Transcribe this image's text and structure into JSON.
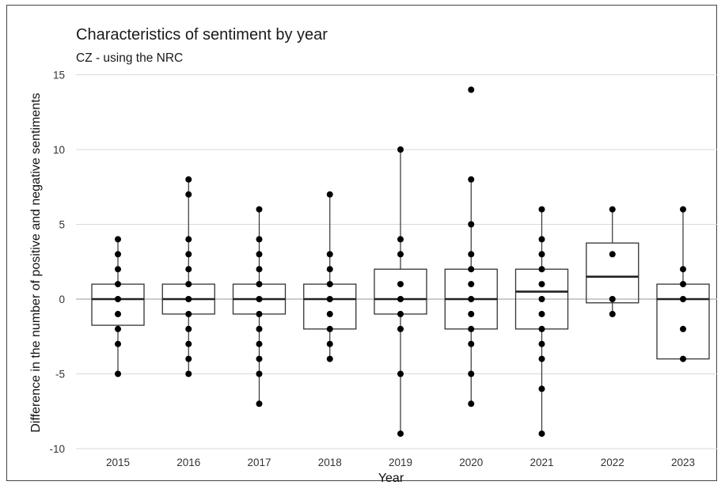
{
  "chart_data": {
    "type": "box",
    "title": "Characteristics of sentiment by year",
    "subtitle": "CZ - using the NRC",
    "xlabel": "Year",
    "ylabel": "Difference in the number of positive and negative sentiments",
    "categories": [
      "2015",
      "2016",
      "2017",
      "2018",
      "2019",
      "2020",
      "2021",
      "2022",
      "2023"
    ],
    "ylim": [
      -10,
      15
    ],
    "yticks": [
      -10,
      -5,
      0,
      5,
      10,
      15
    ],
    "grid": true,
    "boxes": [
      {
        "category": "2015",
        "q1": -1.75,
        "median": 0,
        "q3": 1,
        "whisker_low": -5,
        "whisker_high": 4,
        "points": [
          4,
          3,
          2,
          1,
          0,
          -1,
          -2,
          -3,
          -5
        ]
      },
      {
        "category": "2016",
        "q1": -1,
        "median": 0,
        "q3": 1,
        "whisker_low": -5,
        "whisker_high": 8,
        "points": [
          8,
          7,
          4,
          3,
          2,
          1,
          0,
          -1,
          -2,
          -3,
          -4,
          -5
        ]
      },
      {
        "category": "2017",
        "q1": -1,
        "median": 0,
        "q3": 1,
        "whisker_low": -7,
        "whisker_high": 6,
        "points": [
          6,
          4,
          3,
          2,
          1,
          0,
          -1,
          -2,
          -3,
          -4,
          -5,
          -7
        ]
      },
      {
        "category": "2018",
        "q1": -2,
        "median": 0,
        "q3": 1,
        "whisker_low": -4,
        "whisker_high": 7,
        "points": [
          7,
          3,
          2,
          1,
          0,
          -1,
          -2,
          -3,
          -4
        ]
      },
      {
        "category": "2019",
        "q1": -1,
        "median": 0,
        "q3": 2,
        "whisker_low": -9,
        "whisker_high": 10,
        "points": [
          10,
          4,
          3,
          1,
          0,
          -1,
          -2,
          -5,
          -9
        ]
      },
      {
        "category": "2020",
        "q1": -2,
        "median": 0,
        "q3": 2,
        "whisker_low": -7,
        "whisker_high": 8,
        "points": [
          14,
          8,
          5,
          3,
          2,
          1,
          0,
          -1,
          -2,
          -3,
          -5,
          -7
        ]
      },
      {
        "category": "2021",
        "q1": -2,
        "median": 0.5,
        "q3": 2,
        "whisker_low": -9,
        "whisker_high": 6,
        "points": [
          6,
          4,
          3,
          2,
          1,
          0,
          -1,
          -2,
          -3,
          -4,
          -6,
          -9
        ]
      },
      {
        "category": "2022",
        "q1": -0.25,
        "median": 1.5,
        "q3": 3.75,
        "whisker_low": -1,
        "whisker_high": 6,
        "points": [
          6,
          3,
          0,
          -1
        ]
      },
      {
        "category": "2023",
        "q1": -4,
        "median": 0,
        "q3": 1,
        "whisker_low": -4,
        "whisker_high": 6,
        "points": [
          6,
          2,
          1,
          0,
          -2,
          -4
        ]
      }
    ],
    "colors": {
      "box_stroke": "#333333",
      "point": "#000000",
      "grid": "#d9d9d9",
      "zero_line": "#bbbbbb"
    }
  }
}
